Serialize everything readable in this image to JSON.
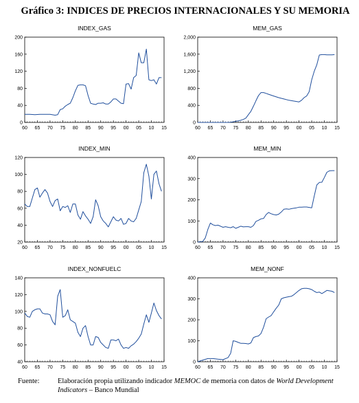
{
  "figure": {
    "title": "Gráfico 3: INDICES DE PRECIOS INTERNACIONALES Y SU MEMORIA",
    "source_label": "Fuente:",
    "source_pre": "Elaboración propia utilizando indicador ",
    "source_memoc": "MEMOC",
    "source_mid": " de memoria con datos de ",
    "source_wdi": "World Development Indicators",
    "source_post": " – Banco Mundial"
  },
  "chart_data": [
    {
      "type": "line",
      "title": "INDEX_GAS",
      "x_ticks": [
        "60",
        "65",
        "70",
        "75",
        "80",
        "85",
        "90",
        "95",
        "00",
        "05",
        "10",
        "15"
      ],
      "y_ticks": [
        "0",
        "40",
        "80",
        "120",
        "160",
        "200"
      ],
      "ylim": [
        0,
        200
      ],
      "grid": false,
      "color": "#1f4e9c",
      "x": [
        1960,
        1962,
        1964,
        1966,
        1968,
        1970,
        1972,
        1973,
        1974,
        1975,
        1976,
        1977,
        1978,
        1979,
        1980,
        1981,
        1982,
        1983,
        1984,
        1985,
        1986,
        1987,
        1988,
        1989,
        1990,
        1991,
        1992,
        1993,
        1994,
        1995,
        1996,
        1997,
        1998,
        1999,
        2000,
        2001,
        2002,
        2003,
        2004,
        2005,
        2006,
        2007,
        2008,
        2009,
        2010,
        2011,
        2012,
        2013,
        2014
      ],
      "y": [
        19,
        19,
        18,
        19,
        19,
        19,
        17,
        18,
        30,
        32,
        38,
        42,
        45,
        58,
        74,
        87,
        88,
        88,
        86,
        63,
        45,
        43,
        42,
        45,
        45,
        46,
        43,
        43,
        48,
        55,
        55,
        50,
        45,
        44,
        90,
        91,
        78,
        105,
        110,
        163,
        140,
        140,
        172,
        100,
        98,
        100,
        90,
        105,
        105
      ]
    },
    {
      "type": "line",
      "title": "MEM_GAS",
      "x_ticks": [
        "60",
        "65",
        "70",
        "75",
        "80",
        "85",
        "90",
        "95",
        "00",
        "05",
        "10",
        "15"
      ],
      "y_ticks": [
        "0",
        "400",
        "800",
        "1,200",
        "1,600",
        "2,000"
      ],
      "ylim": [
        0,
        2000
      ],
      "grid": false,
      "color": "#1f4e9c",
      "x": [
        1960,
        1965,
        1970,
        1972,
        1973,
        1974,
        1975,
        1976,
        1977,
        1978,
        1979,
        1980,
        1981,
        1982,
        1983,
        1984,
        1985,
        1986,
        1987,
        1988,
        1990,
        1992,
        1994,
        1996,
        1998,
        2000,
        2001,
        2002,
        2003,
        2004,
        2005,
        2006,
        2007,
        2008,
        2009,
        2010,
        2011,
        2012,
        2013,
        2014
      ],
      "y": [
        0,
        0,
        0,
        0,
        5,
        15,
        25,
        35,
        50,
        70,
        100,
        180,
        260,
        380,
        510,
        630,
        700,
        700,
        680,
        660,
        620,
        580,
        550,
        520,
        500,
        480,
        520,
        580,
        620,
        720,
        1000,
        1200,
        1350,
        1580,
        1590,
        1590,
        1585,
        1585,
        1585,
        1590
      ]
    },
    {
      "type": "line",
      "title": "INDEX_MIN",
      "x_ticks": [
        "60",
        "65",
        "70",
        "75",
        "80",
        "85",
        "90",
        "95",
        "00",
        "05",
        "10",
        "15"
      ],
      "y_ticks": [
        "20",
        "40",
        "60",
        "80",
        "100",
        "120"
      ],
      "ylim": [
        20,
        120
      ],
      "grid": false,
      "color": "#1f4e9c",
      "x": [
        1960,
        1961,
        1962,
        1963,
        1964,
        1965,
        1966,
        1967,
        1968,
        1969,
        1970,
        1971,
        1972,
        1973,
        1974,
        1975,
        1976,
        1977,
        1978,
        1979,
        1980,
        1981,
        1982,
        1983,
        1984,
        1985,
        1986,
        1987,
        1988,
        1989,
        1990,
        1991,
        1992,
        1993,
        1994,
        1995,
        1996,
        1997,
        1998,
        1999,
        2000,
        2001,
        2002,
        2003,
        2004,
        2005,
        2006,
        2007,
        2008,
        2009,
        2010,
        2011,
        2012,
        2013,
        2014
      ],
      "y": [
        65,
        62,
        62,
        72,
        82,
        84,
        73,
        78,
        82,
        78,
        68,
        62,
        69,
        71,
        57,
        62,
        61,
        63,
        55,
        65,
        65,
        52,
        47,
        56,
        51,
        47,
        42,
        50,
        70,
        63,
        50,
        45,
        42,
        38,
        44,
        50,
        46,
        45,
        48,
        41,
        42,
        48,
        45,
        44,
        48,
        58,
        68,
        102,
        112,
        98,
        71,
        100,
        104,
        89,
        80
      ]
    },
    {
      "type": "line",
      "title": "MEM_MIN",
      "x_ticks": [
        "60",
        "65",
        "70",
        "75",
        "80",
        "85",
        "90",
        "95",
        "00",
        "05",
        "10",
        "15"
      ],
      "y_ticks": [
        "0",
        "100",
        "200",
        "300",
        "400"
      ],
      "ylim": [
        0,
        400
      ],
      "grid": false,
      "color": "#1f4e9c",
      "x": [
        1960,
        1961,
        1962,
        1963,
        1964,
        1965,
        1966,
        1967,
        1968,
        1969,
        1970,
        1971,
        1972,
        1973,
        1974,
        1975,
        1976,
        1977,
        1978,
        1979,
        1980,
        1981,
        1982,
        1983,
        1984,
        1985,
        1986,
        1987,
        1988,
        1989,
        1990,
        1991,
        1992,
        1993,
        1994,
        1995,
        1996,
        1997,
        1998,
        1999,
        2000,
        2001,
        2002,
        2003,
        2004,
        2005,
        2006,
        2007,
        2008,
        2009,
        2010,
        2011,
        2012,
        2013,
        2014
      ],
      "y": [
        0,
        2,
        3,
        20,
        60,
        90,
        82,
        78,
        80,
        75,
        70,
        73,
        70,
        68,
        73,
        65,
        70,
        75,
        72,
        73,
        73,
        70,
        78,
        98,
        103,
        110,
        112,
        130,
        140,
        134,
        130,
        128,
        132,
        142,
        155,
        157,
        155,
        158,
        160,
        162,
        165,
        165,
        166,
        166,
        164,
        162,
        218,
        270,
        282,
        283,
        305,
        330,
        337,
        338,
        338
      ]
    },
    {
      "type": "line",
      "title": "INDEX_NONFUELC",
      "x_ticks": [
        "60",
        "65",
        "70",
        "75",
        "80",
        "85",
        "90",
        "95",
        "00",
        "05",
        "10",
        "15"
      ],
      "y_ticks": [
        "40",
        "60",
        "80",
        "100",
        "120",
        "140"
      ],
      "ylim": [
        40,
        140
      ],
      "grid": false,
      "color": "#1f4e9c",
      "x": [
        1960,
        1961,
        1962,
        1963,
        1964,
        1965,
        1966,
        1967,
        1968,
        1969,
        1970,
        1971,
        1972,
        1973,
        1974,
        1975,
        1976,
        1977,
        1978,
        1979,
        1980,
        1981,
        1982,
        1983,
        1984,
        1985,
        1986,
        1987,
        1988,
        1989,
        1990,
        1991,
        1992,
        1993,
        1994,
        1995,
        1996,
        1997,
        1998,
        1999,
        2000,
        2001,
        2002,
        2003,
        2004,
        2005,
        2006,
        2007,
        2008,
        2009,
        2010,
        2011,
        2012,
        2013,
        2014
      ],
      "y": [
        98,
        94,
        93,
        100,
        102,
        103,
        103,
        98,
        97,
        97,
        96,
        88,
        84,
        118,
        126,
        93,
        95,
        102,
        90,
        88,
        86,
        75,
        70,
        80,
        83,
        70,
        60,
        60,
        70,
        69,
        63,
        60,
        57,
        56,
        66,
        66,
        65,
        67,
        60,
        56,
        57,
        56,
        59,
        61,
        64,
        68,
        73,
        85,
        96,
        87,
        98,
        110,
        101,
        95,
        91
      ]
    },
    {
      "type": "line",
      "title": "MEM_NONF",
      "x_ticks": [
        "60",
        "65",
        "70",
        "75",
        "80",
        "85",
        "90",
        "95",
        "00",
        "05",
        "10",
        "15"
      ],
      "y_ticks": [
        "0",
        "100",
        "200",
        "300",
        "400"
      ],
      "ylim": [
        0,
        400
      ],
      "grid": false,
      "color": "#1f4e9c",
      "x": [
        1960,
        1962,
        1964,
        1966,
        1968,
        1970,
        1972,
        1973,
        1974,
        1975,
        1976,
        1977,
        1978,
        1979,
        1980,
        1981,
        1982,
        1983,
        1984,
        1985,
        1986,
        1987,
        1988,
        1989,
        1990,
        1991,
        1992,
        1993,
        1994,
        1995,
        1996,
        1997,
        1998,
        1999,
        2000,
        2001,
        2002,
        2003,
        2004,
        2005,
        2006,
        2007,
        2008,
        2009,
        2010,
        2011,
        2012,
        2013,
        2014
      ],
      "y": [
        0,
        8,
        15,
        15,
        12,
        10,
        20,
        40,
        100,
        97,
        92,
        88,
        88,
        87,
        85,
        90,
        115,
        120,
        123,
        135,
        165,
        205,
        213,
        220,
        238,
        255,
        270,
        300,
        305,
        308,
        310,
        312,
        320,
        330,
        340,
        348,
        350,
        350,
        348,
        344,
        336,
        330,
        332,
        325,
        332,
        340,
        338,
        336,
        330
      ]
    }
  ]
}
